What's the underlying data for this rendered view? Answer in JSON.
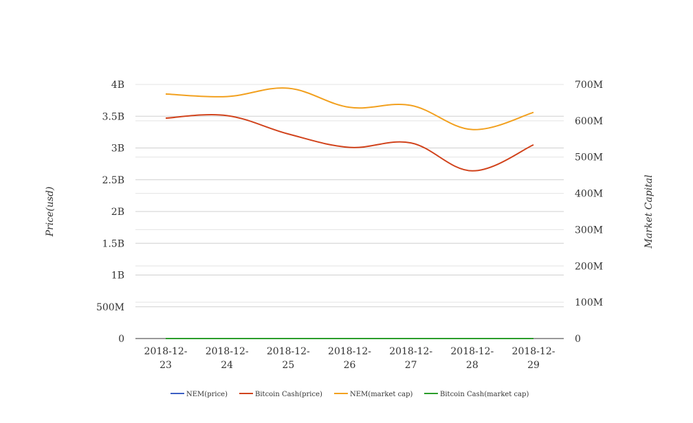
{
  "chart_data": {
    "type": "line",
    "title": "",
    "categories": [
      "2018-12-23",
      "2018-12-24",
      "2018-12-25",
      "2018-12-26",
      "2018-12-27",
      "2018-12-28",
      "2018-12-29"
    ],
    "x_tick_labels": [
      [
        "2018-12-",
        "23"
      ],
      [
        "2018-12-",
        "24"
      ],
      [
        "2018-12-",
        "25"
      ],
      [
        "2018-12-",
        "26"
      ],
      [
        "2018-12-",
        "27"
      ],
      [
        "2018-12-",
        "28"
      ],
      [
        "2018-12-",
        "29"
      ]
    ],
    "ylabel": "Price(usd)",
    "y2label": "Market Capital",
    "ylim": [
      0,
      4000000000
    ],
    "y2lim": [
      0,
      700000000
    ],
    "y_ticks": [
      0,
      500000000,
      1000000000,
      1500000000,
      2000000000,
      2500000000,
      3000000000,
      3500000000,
      4000000000
    ],
    "y_tick_labels": [
      "0",
      "500M",
      "1B",
      "1.5B",
      "2B",
      "2.5B",
      "3B",
      "3.5B",
      "4B"
    ],
    "y2_ticks": [
      0,
      100000000,
      200000000,
      300000000,
      400000000,
      500000000,
      600000000,
      700000000
    ],
    "y2_tick_labels": [
      "0",
      "100M",
      "200M",
      "300M",
      "400M",
      "500M",
      "600M",
      "700M"
    ],
    "grid": true,
    "legend_position": "bottom",
    "series": [
      {
        "name": "NEM(price)",
        "axis": "left",
        "color": "#3b5fc4",
        "values": [
          0.09,
          0.09,
          0.09,
          0.08,
          0.08,
          0.07,
          0.08
        ]
      },
      {
        "name": "Bitcoin Cash(price)",
        "axis": "left",
        "color": "#d1431c",
        "values": [
          3470000000,
          3510000000,
          3220000000,
          3010000000,
          3080000000,
          2640000000,
          3050000000
        ]
      },
      {
        "name": "NEM(market cap)",
        "axis": "left",
        "color": "#f2a01e",
        "values": [
          3850000000,
          3810000000,
          3940000000,
          3640000000,
          3670000000,
          3290000000,
          3560000000
        ]
      },
      {
        "name": "Bitcoin Cash(market cap)",
        "axis": "right",
        "color": "#2a9d2a",
        "values": [
          170,
          180,
          165,
          160,
          170,
          145,
          160
        ]
      }
    ]
  }
}
